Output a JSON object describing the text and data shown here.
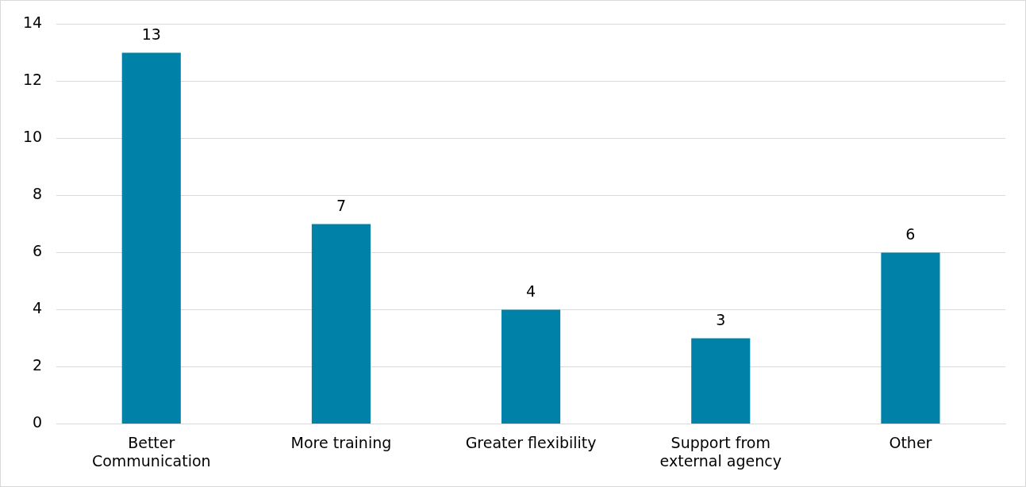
{
  "chart_data": {
    "type": "bar",
    "categories": [
      "Better\nCommunication",
      "More training",
      "Greater flexibility",
      "Support from\nexternal agency",
      "Other"
    ],
    "values": [
      13,
      7,
      4,
      3,
      6
    ],
    "color": "#0081a7",
    "ylim": [
      0,
      14
    ],
    "yticks": [
      0,
      2,
      4,
      6,
      8,
      10,
      12,
      14
    ],
    "grid": "y",
    "data_labels": true,
    "legend": false
  }
}
